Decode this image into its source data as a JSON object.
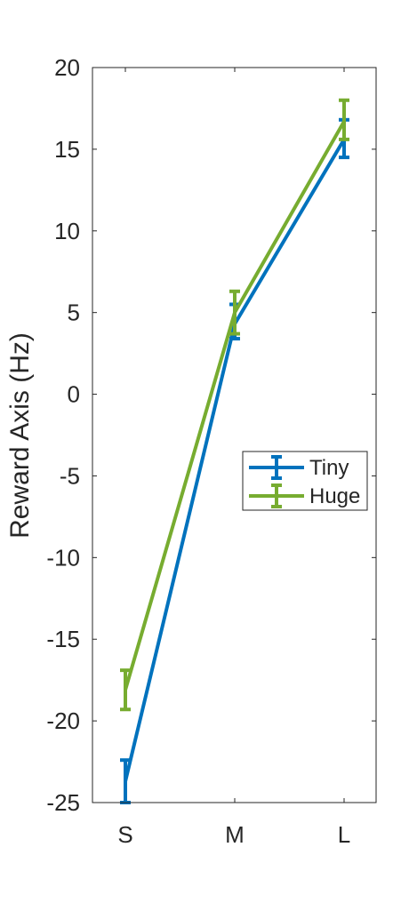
{
  "chart_data": {
    "type": "line",
    "title": "",
    "xlabel": "",
    "ylabel": "Reward Axis (Hz)",
    "categories": [
      "S",
      "M",
      "L"
    ],
    "ylim": [
      -25,
      20
    ],
    "yticks": [
      20,
      15,
      10,
      5,
      0,
      -5,
      -10,
      -15,
      -20,
      -25
    ],
    "ytick_labels": [
      "20",
      "15",
      "10",
      "5",
      "0",
      "-5",
      "-10",
      "-15",
      "-20",
      "-25"
    ],
    "grid": false,
    "legend_position": "right-middle",
    "series": [
      {
        "name": "Tiny",
        "color": "#0072BD",
        "values": [
          -23.7,
          4.3,
          15.6
        ],
        "error_low": [
          -25.0,
          3.4,
          14.5
        ],
        "error_high": [
          -22.4,
          5.5,
          16.8
        ]
      },
      {
        "name": "Huge",
        "color": "#77AC30",
        "values": [
          -18.1,
          5.0,
          16.7
        ],
        "error_low": [
          -19.3,
          3.7,
          15.6
        ],
        "error_high": [
          -16.9,
          6.3,
          18.0
        ]
      }
    ]
  }
}
